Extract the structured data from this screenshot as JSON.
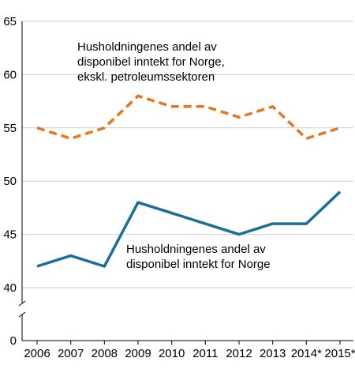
{
  "chart_data": {
    "type": "line",
    "categories": [
      "2006",
      "2007",
      "2008",
      "2009",
      "2010",
      "2011",
      "2012",
      "2013",
      "2014*",
      "2015*"
    ],
    "y_ticks": [
      0,
      40,
      45,
      50,
      55,
      60,
      65
    ],
    "ylim": [
      0,
      65
    ],
    "axis_break": true,
    "grid": true,
    "series": [
      {
        "name": "Husholdningenes andel av disponibel inntekt for Norge, ekskl. petroleumssektoren",
        "label_lines": [
          "Husholdningenes andel av",
          "disponibel inntekt for Norge,",
          "ekskl. petroleumssektoren"
        ],
        "values": [
          55,
          54,
          55,
          58,
          57,
          57,
          56,
          57,
          54,
          55
        ],
        "color": "#e8761c",
        "style": "dashed"
      },
      {
        "name": "Husholdningenes andel av disponibel inntekt for Norge",
        "label_lines": [
          "Husholdningenes andel av",
          "disponibel inntekt for Norge"
        ],
        "values": [
          42,
          43,
          42,
          48,
          47,
          46,
          45,
          46,
          46,
          49
        ],
        "color": "#1a6f98",
        "style": "solid"
      }
    ]
  }
}
